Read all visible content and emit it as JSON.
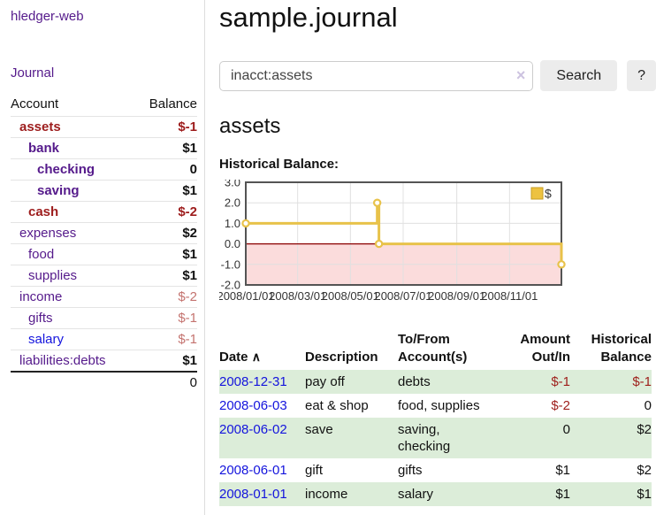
{
  "sidebar": {
    "app_title": "hledger-web",
    "nav": {
      "journal": "Journal"
    },
    "table": {
      "headers": {
        "account": "Account",
        "balance": "Balance"
      },
      "accounts": [
        {
          "name": "assets",
          "balance": "$-1"
        },
        {
          "name": "bank",
          "balance": "$1"
        },
        {
          "name": "checking",
          "balance": "0"
        },
        {
          "name": "saving",
          "balance": "$1"
        },
        {
          "name": "cash",
          "balance": "$-2"
        },
        {
          "name": "expenses",
          "balance": "$2"
        },
        {
          "name": "food",
          "balance": "$1"
        },
        {
          "name": "supplies",
          "balance": "$1"
        },
        {
          "name": "income",
          "balance": "$-2"
        },
        {
          "name": "gifts",
          "balance": "$-1"
        },
        {
          "name": "salary",
          "balance": "$-1"
        },
        {
          "name": "liabilities:debts",
          "balance": "$1"
        }
      ],
      "total": "0"
    }
  },
  "header": {
    "title": "sample.journal"
  },
  "search": {
    "value": "inacct:assets",
    "clear_icon": "×",
    "button_label": "Search",
    "help_label": "?"
  },
  "account_page": {
    "heading": "assets",
    "chart_label": "Historical Balance:"
  },
  "chart_data": {
    "type": "line-step",
    "title": "Historical Balance",
    "legend": [
      {
        "label": "$",
        "color": "#edc240"
      }
    ],
    "x_range": [
      "2008-01-01",
      "2008-12-31"
    ],
    "ylim": [
      -2,
      3
    ],
    "y_ticks": [
      3.0,
      2.0,
      1.0,
      0.0,
      -1.0,
      -2.0
    ],
    "x_ticks": [
      "2008/01/01",
      "2008/03/01",
      "2008/05/01",
      "2008/07/01",
      "2008/09/01",
      "2008/11/01"
    ],
    "points": [
      [
        "2008-01-01",
        1
      ],
      [
        "2008-06-01",
        2
      ],
      [
        "2008-06-03",
        0
      ],
      [
        "2008-12-31",
        -1
      ]
    ],
    "series_color": "#e8c24a",
    "marker_fill": "#ffffff",
    "negative_fill": "#fbdcdc",
    "zero_line_color": "#8b0000",
    "grid_color": "#e0e0e0",
    "border_color": "#545454"
  },
  "register": {
    "headers": {
      "date": "Date",
      "sort_icon": "∧",
      "description": "Description",
      "account": "To/From Account(s)",
      "amount": "Amount Out/In",
      "balance": "Historical Balance"
    },
    "rows": [
      {
        "date": "2008-12-31",
        "description": "pay off",
        "account": "debts",
        "amount": "$-1",
        "balance": "$-1"
      },
      {
        "date": "2008-06-03",
        "description": "eat & shop",
        "account": "food, supplies",
        "amount": "$-2",
        "balance": "0"
      },
      {
        "date": "2008-06-02",
        "description": "save",
        "account": "saving, checking",
        "amount": "0",
        "balance": "$2"
      },
      {
        "date": "2008-06-01",
        "description": "gift",
        "account": "gifts",
        "amount": "$1",
        "balance": "$2"
      },
      {
        "date": "2008-01-01",
        "description": "income",
        "account": "salary",
        "amount": "$1",
        "balance": "$1"
      }
    ]
  }
}
